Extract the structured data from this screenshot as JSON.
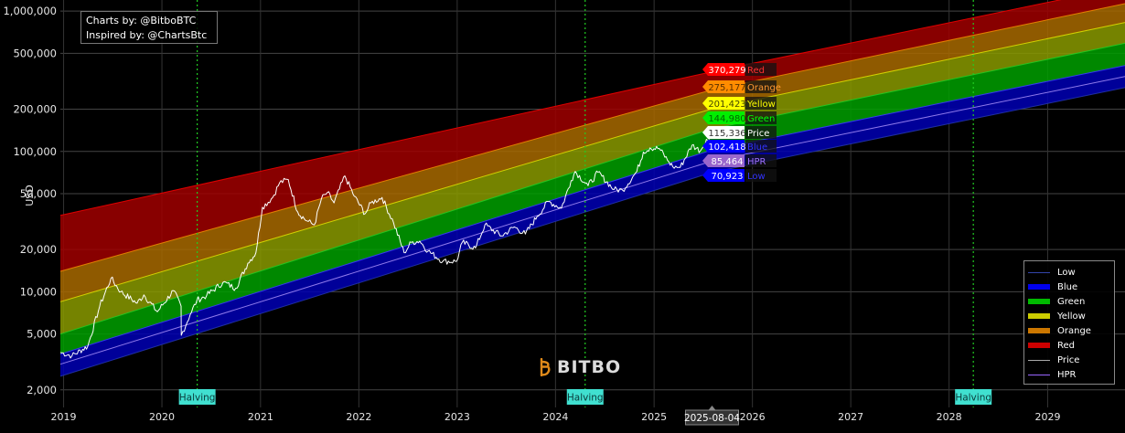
{
  "credit": {
    "line1": "Charts by: @BitboBTC",
    "line2": "Inspired by: @ChartsBtc"
  },
  "logo": {
    "text": "BITBO",
    "icon": "bitbo-logo-icon"
  },
  "colors": {
    "background": "#000000",
    "red": "#ff0000",
    "orange": "#ff8c00",
    "yellow": "#ffff00",
    "green": "#00cc00",
    "blue": "#0000ee",
    "price": "#ffffff",
    "hpr": "#9966ff",
    "halving_line": "#22cc22",
    "halving_label_bg": "#40e0d0"
  },
  "chart_data": {
    "type": "area",
    "title": "",
    "ylabel": "USD",
    "yscale": "log",
    "ylim": [
      1500,
      1200000
    ],
    "xlim": [
      "2018-12-20",
      "2029-10-15"
    ],
    "grid": true,
    "legend_position": "bottom-right",
    "x_ticks": [
      "2019",
      "2020",
      "2021",
      "2022",
      "2023",
      "2024",
      "2025",
      "2026",
      "2027",
      "2028",
      "2029"
    ],
    "y_ticks": [
      {
        "value": 2000,
        "label": "2,000"
      },
      {
        "value": 5000,
        "label": "5,000"
      },
      {
        "value": 10000,
        "label": "10,000"
      },
      {
        "value": 20000,
        "label": "20,000"
      },
      {
        "value": 50000,
        "label": "50,000"
      },
      {
        "value": 100000,
        "label": "100,000"
      },
      {
        "value": 200000,
        "label": "200,000"
      },
      {
        "value": 500000,
        "label": "500,000"
      },
      {
        "value": 1000000,
        "label": "1,000,000"
      }
    ],
    "band_lines": {
      "x": [
        "2018-12-20",
        "2025-08-04",
        "2029-10-15"
      ],
      "low": [
        2500,
        70923,
        285000
      ],
      "blue": [
        3600,
        102418,
        410000
      ],
      "green": [
        5000,
        144980,
        590000
      ],
      "yellow": [
        8500,
        201423,
        830000
      ],
      "orange": [
        14000,
        275177,
        1130000
      ],
      "red": [
        35000,
        370279,
        1500000
      ],
      "hpr": [
        3050,
        85464,
        342000
      ]
    },
    "legend": [
      {
        "name": "Low",
        "color": "#3344aa",
        "style": "line"
      },
      {
        "name": "Blue",
        "color": "#0000ee",
        "style": "fill"
      },
      {
        "name": "Green",
        "color": "#00bb00",
        "style": "fill"
      },
      {
        "name": "Yellow",
        "color": "#cccc00",
        "style": "fill"
      },
      {
        "name": "Orange",
        "color": "#cc7700",
        "style": "fill"
      },
      {
        "name": "Red",
        "color": "#cc0000",
        "style": "fill"
      },
      {
        "name": "Price",
        "color": "#aaaaaa",
        "style": "line"
      },
      {
        "name": "HPR",
        "color": "#9966ff",
        "style": "line"
      }
    ],
    "halvings": [
      {
        "date": "2020-05-11",
        "label": "Halving"
      },
      {
        "date": "2024-04-20",
        "label": "Halving"
      },
      {
        "date": "2028-03-31",
        "label": "Halving"
      }
    ],
    "current_date": "2025-08-04",
    "value_labels": [
      {
        "name": "Red",
        "value": 370279,
        "display": "370,279",
        "bg": "#ff0000",
        "fg": "#ffffff",
        "name_color": "#ff3030"
      },
      {
        "name": "Orange",
        "value": 275177,
        "display": "275,177",
        "bg": "#ff8c00",
        "fg": "#5a3000",
        "name_color": "#ff9933"
      },
      {
        "name": "Yellow",
        "value": 201423,
        "display": "201,423",
        "bg": "#ffff00",
        "fg": "#444400",
        "name_color": "#ffff00"
      },
      {
        "name": "Green",
        "value": 144980,
        "display": "144,980",
        "bg": "#00ee00",
        "fg": "#006600",
        "name_color": "#00ff00"
      },
      {
        "name": "Price",
        "value": 115336,
        "display": "115,336",
        "bg": "#ffffff",
        "fg": "#333333",
        "name_color": "#ffffff"
      },
      {
        "name": "Blue",
        "value": 102418,
        "display": "102,418",
        "bg": "#0000ff",
        "fg": "#ffffff",
        "name_color": "#3333ff"
      },
      {
        "name": "HPR",
        "value": 85464,
        "display": "85,464",
        "bg": "#9966cc",
        "fg": "#ffffff",
        "name_color": "#a070ff"
      },
      {
        "name": "Low",
        "value": 70923,
        "display": "70,923",
        "bg": "#0000ff",
        "fg": "#ffffff",
        "name_color": "#3333ff"
      }
    ],
    "price": {
      "x": [
        "2018-12-20",
        "2019-02-01",
        "2019-04-01",
        "2019-05-15",
        "2019-06-26",
        "2019-08-01",
        "2019-10-01",
        "2019-10-26",
        "2019-12-15",
        "2020-02-12",
        "2020-03-12",
        "2020-03-13",
        "2020-04-15",
        "2020-05-10",
        "2020-06-15",
        "2020-08-15",
        "2020-10-01",
        "2020-11-15",
        "2020-12-15",
        "2021-01-08",
        "2021-02-15",
        "2021-03-13",
        "2021-04-14",
        "2021-05-19",
        "2021-06-22",
        "2021-07-20",
        "2021-08-15",
        "2021-09-06",
        "2021-10-01",
        "2021-11-10",
        "2021-12-15",
        "2022-01-24",
        "2022-02-15",
        "2022-03-28",
        "2022-05-10",
        "2022-06-18",
        "2022-07-15",
        "2022-08-15",
        "2022-09-15",
        "2022-11-09",
        "2022-12-30",
        "2023-01-20",
        "2023-03-10",
        "2023-04-14",
        "2023-06-15",
        "2023-08-01",
        "2023-09-11",
        "2023-10-25",
        "2023-12-05",
        "2024-01-23",
        "2024-02-28",
        "2024-03-14",
        "2024-05-01",
        "2024-06-07",
        "2024-08-05",
        "2024-09-06",
        "2024-10-29",
        "2024-11-22",
        "2024-12-17",
        "2025-01-20",
        "2025-02-25",
        "2025-03-11",
        "2025-04-08",
        "2025-05-22",
        "2025-06-22",
        "2025-07-14",
        "2025-08-04"
      ],
      "y": [
        3700,
        3500,
        4100,
        7900,
        12500,
        10000,
        8300,
        9500,
        7200,
        10200,
        7900,
        4900,
        6900,
        8700,
        9400,
        11700,
        10600,
        16000,
        19000,
        40000,
        47000,
        60000,
        63000,
        37000,
        32000,
        30000,
        46000,
        51000,
        43000,
        67000,
        48000,
        36000,
        43000,
        47000,
        31000,
        19000,
        22500,
        23000,
        19500,
        16500,
        16500,
        22500,
        20500,
        30000,
        25000,
        29000,
        25800,
        34500,
        44000,
        39500,
        62000,
        72000,
        57000,
        71000,
        53500,
        53000,
        72000,
        99000,
        106000,
        105000,
        84000,
        78000,
        77000,
        111000,
        101000,
        122000,
        115336
      ]
    }
  }
}
